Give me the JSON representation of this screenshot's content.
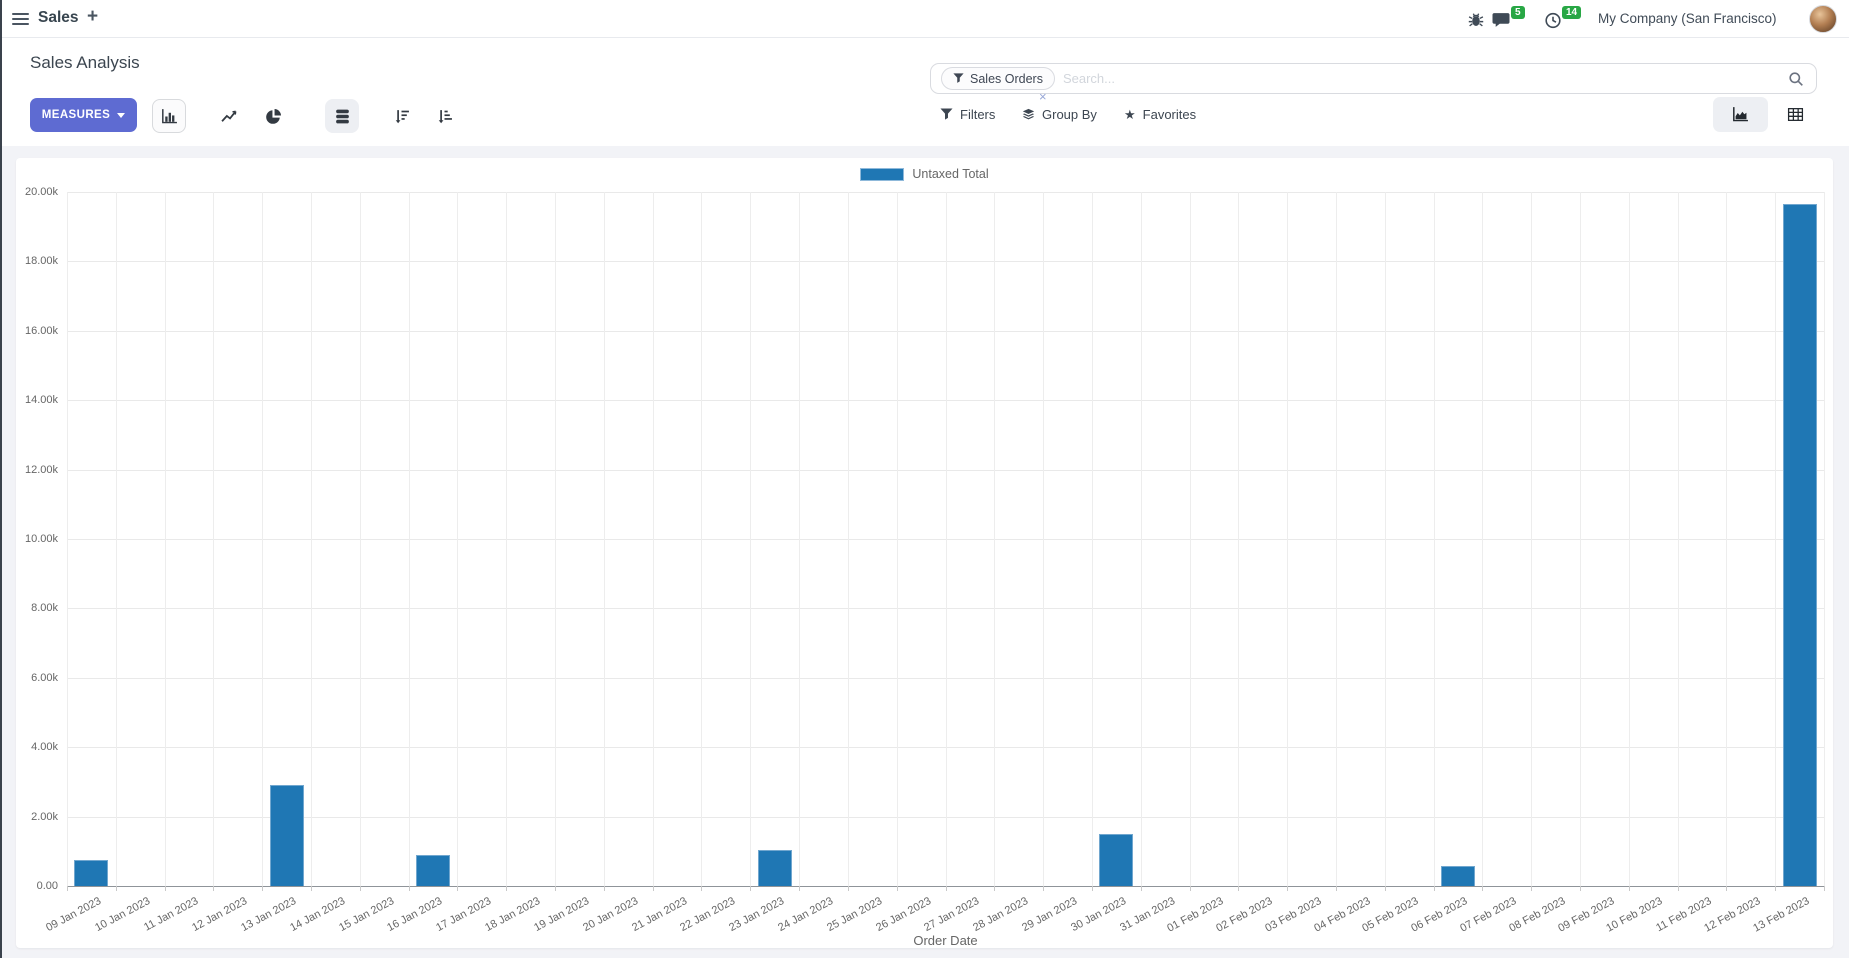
{
  "navbar": {
    "app_name": "Sales",
    "plus": "+",
    "company_name": "My Company (San Francisco)",
    "badges": {
      "messages": "5",
      "activities": "14"
    }
  },
  "control_panel": {
    "breadcrumb_title": "Sales Analysis",
    "measures_button": "MEASURES",
    "search": {
      "facet_label": "Sales Orders",
      "facet_remove": "×",
      "placeholder": "Search..."
    },
    "filter_buttons": {
      "filters": "Filters",
      "group_by": "Group By",
      "favorites": "Favorites"
    },
    "icons": {
      "chart_types": [
        "bar-chart-icon",
        "line-chart-icon",
        "pie-chart-icon"
      ],
      "modifiers": [
        "stacked-icon",
        "sort-descending-icon",
        "sort-ascending-icon"
      ],
      "view_switcher": [
        "graph-view-icon",
        "pivot-view-icon"
      ],
      "favorites_star": "★"
    }
  },
  "colors": {
    "primary_button": "#5e6bd2",
    "bar": "#1f77b4",
    "badge_green": "#28a745"
  },
  "chart_data": {
    "type": "bar",
    "title": "",
    "xlabel": "Order Date",
    "ylabel": "",
    "legend_position": "top",
    "grid": true,
    "ylim": [
      0,
      20000
    ],
    "ytick_step": 2000,
    "ytick_labels": [
      "0.00",
      "2.00k",
      "4.00k",
      "6.00k",
      "8.00k",
      "10.00k",
      "12.00k",
      "14.00k",
      "16.00k",
      "18.00k",
      "20.00k"
    ],
    "categories": [
      "09 Jan 2023",
      "10 Jan 2023",
      "11 Jan 2023",
      "12 Jan 2023",
      "13 Jan 2023",
      "14 Jan 2023",
      "15 Jan 2023",
      "16 Jan 2023",
      "17 Jan 2023",
      "18 Jan 2023",
      "19 Jan 2023",
      "20 Jan 2023",
      "21 Jan 2023",
      "22 Jan 2023",
      "23 Jan 2023",
      "24 Jan 2023",
      "25 Jan 2023",
      "26 Jan 2023",
      "27 Jan 2023",
      "28 Jan 2023",
      "29 Jan 2023",
      "30 Jan 2023",
      "31 Jan 2023",
      "01 Feb 2023",
      "02 Feb 2023",
      "03 Feb 2023",
      "04 Feb 2023",
      "05 Feb 2023",
      "06 Feb 2023",
      "07 Feb 2023",
      "08 Feb 2023",
      "09 Feb 2023",
      "10 Feb 2023",
      "11 Feb 2023",
      "12 Feb 2023",
      "13 Feb 2023"
    ],
    "series": [
      {
        "name": "Untaxed Total",
        "color": "#1f77b4",
        "values": [
          760,
          0,
          0,
          0,
          2900,
          0,
          0,
          880,
          0,
          0,
          0,
          0,
          0,
          0,
          1030,
          0,
          0,
          0,
          0,
          0,
          0,
          1500,
          0,
          0,
          0,
          0,
          0,
          0,
          590,
          0,
          0,
          0,
          0,
          0,
          0,
          19660
        ]
      }
    ]
  }
}
